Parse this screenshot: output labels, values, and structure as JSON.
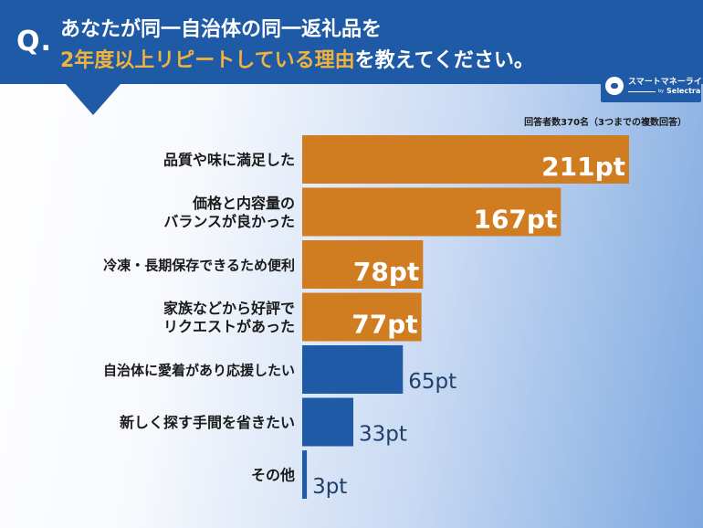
{
  "header": {
    "q_mark": "Q.",
    "title_line1": "あなたが同一自治体の同一返礼品を",
    "title_line2_highlight": "2年度以上リピートしている理由",
    "title_line2_rest": "を教えてください。"
  },
  "logo": {
    "name": "スマートマネーライフ",
    "by": "by",
    "sub": "Selectra",
    "icon": "piggy-bank-icon"
  },
  "respondents_note": "回答者数370名（3つまでの複数回答）",
  "colors": {
    "header": "#1f5aa6",
    "highlight": "#f2b33d",
    "bar_top": "#d07d22",
    "bar_other": "#1f5aa6"
  },
  "chart_data": {
    "type": "bar",
    "orientation": "horizontal",
    "categories": [
      [
        "品質や味に満足した"
      ],
      [
        "価格と内容量の",
        "バランスが良かった"
      ],
      [
        "冷凍・長期保存できるため便利"
      ],
      [
        "家族などから好評で",
        "リクエストがあった"
      ],
      [
        "自治体に愛着があり応援したい"
      ],
      [
        "新しく探す手間を省きたい"
      ],
      [
        "その他"
      ]
    ],
    "values": [
      211,
      167,
      78,
      77,
      65,
      33,
      3
    ],
    "value_labels": [
      "211pt",
      "167pt",
      "78pt",
      "77pt",
      "65pt",
      "33pt",
      "3pt"
    ],
    "highlight_top": 4,
    "xlim": [
      0,
      211
    ],
    "grid": false,
    "title": "",
    "xlabel": "",
    "ylabel": ""
  }
}
